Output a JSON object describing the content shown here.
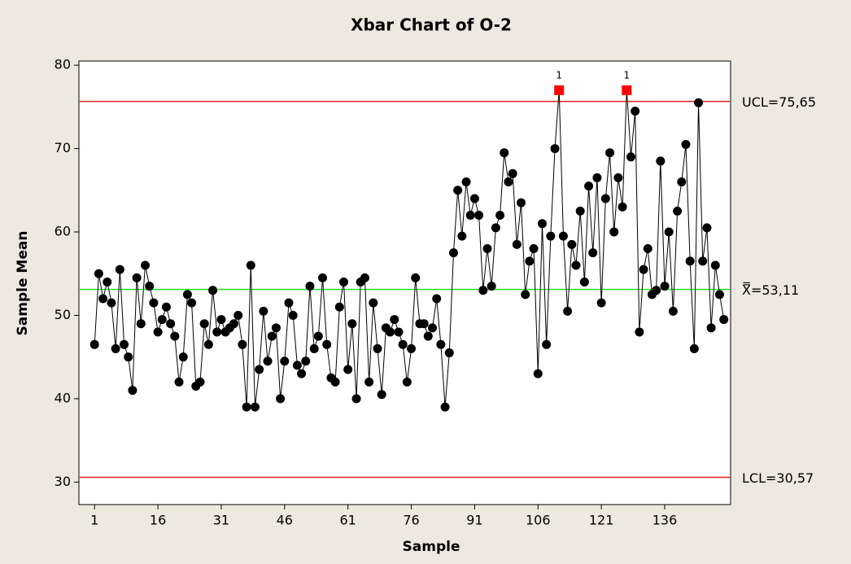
{
  "chart_data": {
    "type": "line",
    "title": "Xbar Chart of O-2",
    "xlabel": "Sample",
    "ylabel": "Sample Mean",
    "x": [
      1,
      2,
      3,
      4,
      5,
      6,
      7,
      8,
      9,
      10,
      11,
      12,
      13,
      14,
      15,
      16,
      17,
      18,
      19,
      20,
      21,
      22,
      23,
      24,
      25,
      26,
      27,
      28,
      29,
      30,
      31,
      32,
      33,
      34,
      35,
      36,
      37,
      38,
      39,
      40,
      41,
      42,
      43,
      44,
      45,
      46,
      47,
      48,
      49,
      50,
      51,
      52,
      53,
      54,
      55,
      56,
      57,
      58,
      59,
      60,
      61,
      62,
      63,
      64,
      65,
      66,
      67,
      68,
      69,
      70,
      71,
      72,
      73,
      74,
      75,
      76,
      77,
      78,
      79,
      80,
      81,
      82,
      83,
      84,
      85,
      86,
      87,
      88,
      89,
      90,
      91,
      92,
      93,
      94,
      95,
      96,
      97,
      98,
      99,
      100,
      101,
      102,
      103,
      104,
      105,
      106,
      107,
      108,
      109,
      110,
      111,
      112,
      113,
      114,
      115,
      116,
      117,
      118,
      119,
      120,
      121,
      122,
      123,
      124,
      125,
      126,
      127,
      128,
      129,
      130,
      131,
      132,
      133,
      134,
      135,
      136,
      137,
      138,
      139,
      140,
      141,
      142,
      143,
      144,
      145,
      146,
      147,
      148,
      149,
      150
    ],
    "series": [
      {
        "color": "#000000",
        "values": [
          46.5,
          55,
          52,
          54,
          51.5,
          46,
          55.5,
          46.5,
          45,
          41,
          54.5,
          49,
          56,
          53.5,
          51.5,
          48,
          49.5,
          51,
          49,
          47.5,
          42,
          45,
          52.5,
          51.5,
          41.5,
          42,
          49,
          46.5,
          53,
          48,
          49.5,
          48,
          48.5,
          49,
          50,
          46.5,
          39,
          56,
          39,
          43.5,
          50.5,
          44.5,
          47.5,
          48.5,
          40,
          44.5,
          51.5,
          50,
          44,
          43,
          44.5,
          53.5,
          46,
          47.5,
          54.5,
          46.5,
          42.5,
          42,
          51,
          54,
          43.5,
          49,
          40,
          54,
          54.5,
          42,
          51.5,
          46,
          40.5,
          48.5,
          48,
          49.5,
          48,
          46.5,
          42,
          46,
          54.5,
          49,
          49,
          47.5,
          48.5,
          52,
          46.5,
          39,
          45.5,
          57.5,
          65,
          59.5,
          66,
          62,
          64,
          62,
          53,
          58,
          53.5,
          60.5,
          62,
          69.5,
          66,
          67,
          58.5,
          63.5,
          52.5,
          56.5,
          58,
          43,
          61,
          46.5,
          59.5,
          70,
          77,
          59.5,
          50.5,
          58.5,
          56,
          62.5,
          54,
          65.5,
          57.5,
          66.5,
          51.5,
          64,
          69.5,
          60,
          66.5,
          63,
          77,
          69,
          74.5,
          48,
          55.5,
          58,
          52.5,
          53,
          68.5,
          53.5,
          60,
          50.5,
          62.5,
          66,
          70.5,
          56.5,
          46,
          75.5,
          56.5,
          60.5,
          48.5,
          56,
          52.5,
          49.5
        ]
      }
    ],
    "flag_color": "#ff0000",
    "annotations": [
      {
        "x": 111,
        "label": "1"
      },
      {
        "x": 127,
        "label": "1"
      }
    ],
    "control_limits": [
      {
        "value": 75.65,
        "label": "UCL=75,65",
        "color": "#e0201b"
      },
      {
        "value": 53.11,
        "label": "X̿=53,11",
        "color": "#22e022"
      },
      {
        "value": 30.57,
        "label": "LCL=30,57",
        "color": "#e0201b"
      }
    ],
    "xlim": [
      -2.7,
      151.6
    ],
    "ylim": [
      27.3,
      80.5
    ],
    "xticks": [
      1,
      16,
      31,
      46,
      61,
      76,
      91,
      106,
      121,
      136
    ],
    "yticks": [
      30,
      40,
      50,
      60,
      70,
      80
    ]
  }
}
